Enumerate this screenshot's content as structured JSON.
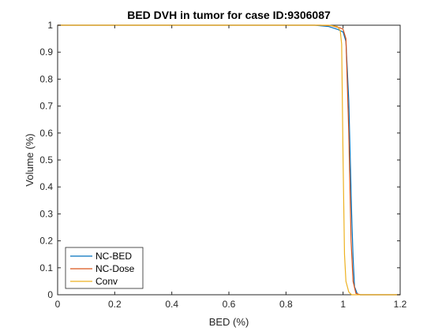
{
  "chart_data": {
    "type": "line",
    "title": "BED DVH in tumor for case ID:9306087",
    "xlabel": "BED (%)",
    "ylabel": "Volume (%)",
    "xlim": [
      0,
      1.2
    ],
    "ylim": [
      0,
      1
    ],
    "xticks": [
      "0",
      "0.2",
      "0.4",
      "0.6",
      "0.8",
      "1",
      "1.2"
    ],
    "yticks": [
      "0",
      "0.1",
      "0.2",
      "0.3",
      "0.4",
      "0.5",
      "0.6",
      "0.7",
      "0.8",
      "0.9",
      "1"
    ],
    "grid": false,
    "legend_position": "bottom-left",
    "series": [
      {
        "name": "NC-BED",
        "color": "#0072BD",
        "x": [
          0,
          0.9,
          0.95,
          0.98,
          1.0,
          1.01,
          1.02,
          1.03,
          1.035,
          1.04,
          1.05,
          1.06,
          1.2
        ],
        "y": [
          1,
          1,
          0.995,
          0.985,
          0.975,
          0.94,
          0.72,
          0.3,
          0.14,
          0.03,
          0.003,
          0,
          0
        ]
      },
      {
        "name": "NC-Dose",
        "color": "#D95319",
        "x": [
          0,
          0.92,
          0.96,
          0.99,
          1.0,
          1.01,
          1.02,
          1.028,
          1.035,
          1.045,
          1.06,
          1.2
        ],
        "y": [
          1,
          1,
          0.998,
          0.99,
          0.985,
          0.95,
          0.6,
          0.2,
          0.05,
          0.005,
          0,
          0
        ]
      },
      {
        "name": "Conv",
        "color": "#EDB120",
        "x": [
          0,
          0.95,
          0.98,
          0.99,
          0.995,
          1.0,
          1.005,
          1.01,
          1.02,
          1.03,
          1.2
        ],
        "y": [
          1,
          1,
          0.995,
          0.98,
          0.93,
          0.5,
          0.15,
          0.05,
          0.01,
          0,
          0
        ]
      }
    ]
  }
}
